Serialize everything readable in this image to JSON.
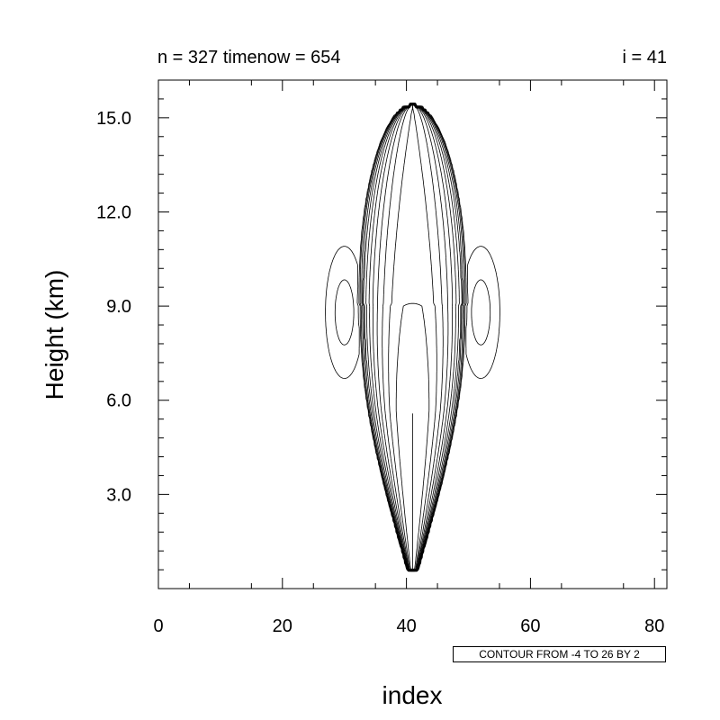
{
  "chart_data": {
    "type": "contour",
    "title_left": "n = 327 timenow = 654",
    "title_right": "i = 41",
    "xlabel": "index",
    "ylabel": "Height (km)",
    "xlim": [
      0,
      82
    ],
    "ylim": [
      0,
      16.2
    ],
    "x_ticks": [
      0,
      20,
      40,
      60,
      80
    ],
    "x_tick_labels": [
      "0",
      "20",
      "40",
      "60",
      "80"
    ],
    "y_ticks": [
      3,
      6,
      9,
      12,
      15
    ],
    "y_tick_labels": [
      "3.0",
      "6.0",
      "9.0",
      "12.0",
      "15.0"
    ],
    "contour_info": "CONTOUR FROM -4 TO 26 BY 2",
    "contour_levels": {
      "min": -4,
      "max": 26,
      "step": 2
    },
    "field_center_index": 41,
    "negative_contours": "dashed",
    "grid": false
  }
}
